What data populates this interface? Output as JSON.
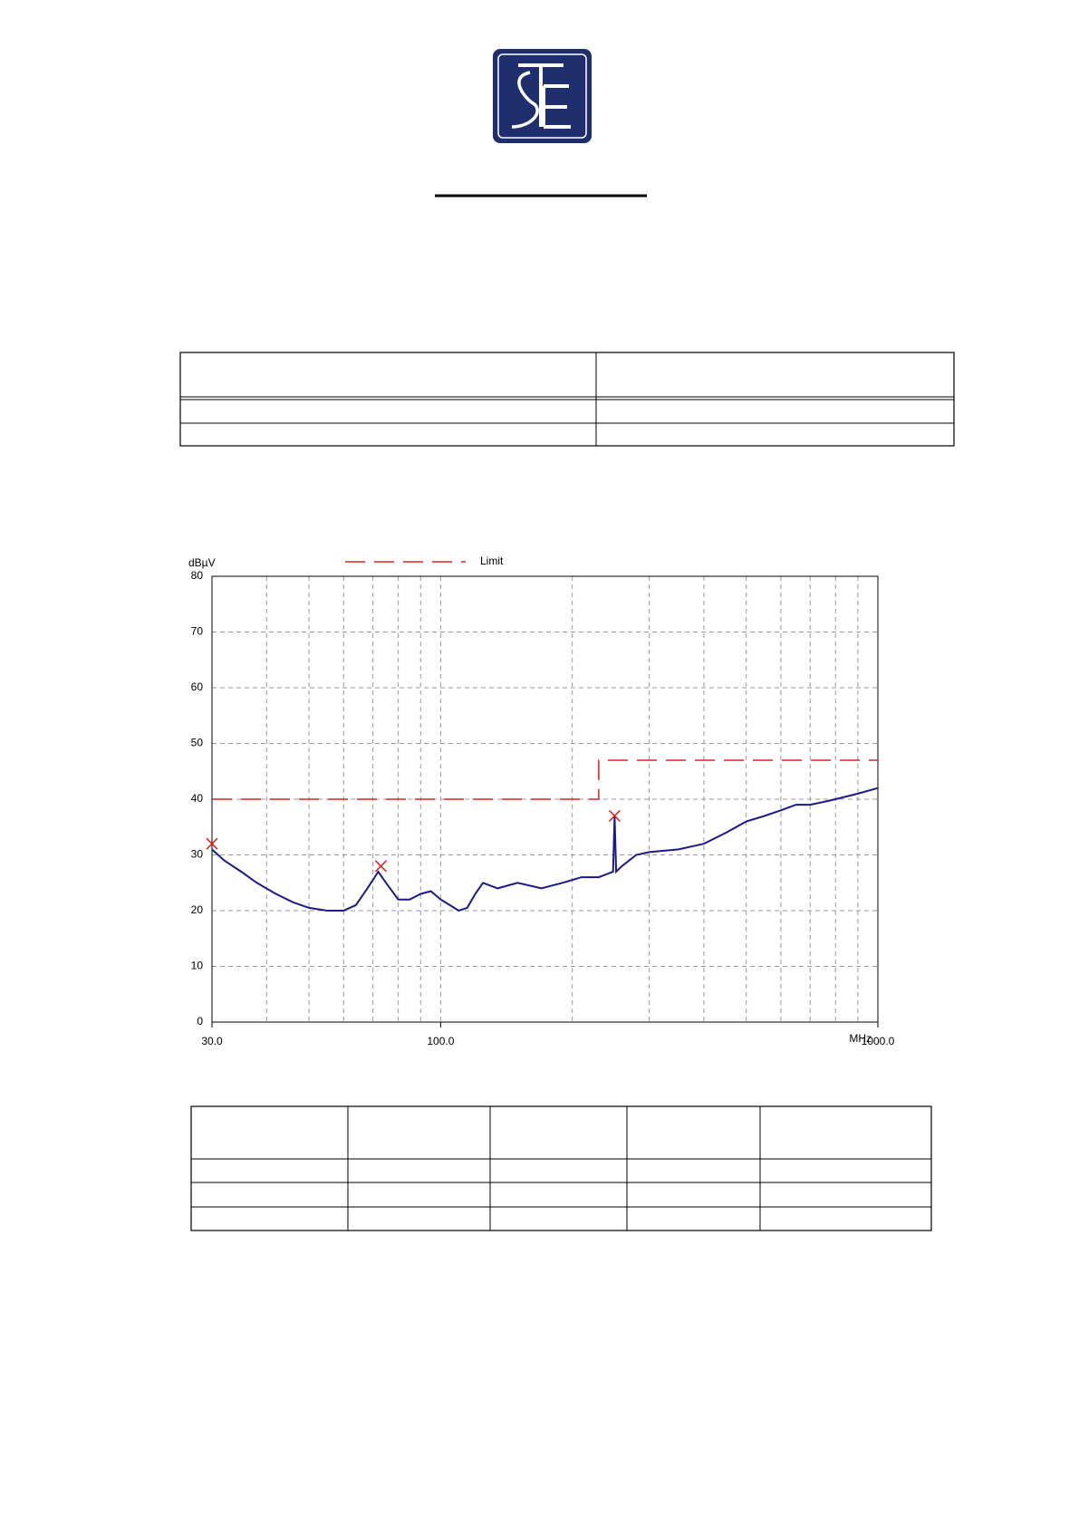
{
  "chart_data": {
    "type": "line",
    "y_label": "dBµV",
    "x_label": "MHz",
    "x_scale": "log",
    "xlim": [
      30,
      1000
    ],
    "ylim": [
      0,
      80
    ],
    "xticks": [
      {
        "value": 30,
        "label": "30.0"
      },
      {
        "value": 100,
        "label": "100.0"
      },
      {
        "value": 1000,
        "label": "1000.0"
      }
    ],
    "x_minor_grid": [
      40,
      50,
      60,
      70,
      80,
      90,
      200,
      300,
      400,
      500,
      600,
      700,
      800,
      900
    ],
    "yticks": [
      0,
      10,
      20,
      30,
      40,
      50,
      60,
      70,
      80
    ],
    "grid": true,
    "series": [
      {
        "color": "#1a1a8c",
        "x": [
          30,
          32,
          35,
          38,
          42,
          46,
          50,
          55,
          60,
          64,
          68,
          72,
          75,
          80,
          85,
          90,
          95,
          100,
          105,
          110,
          115,
          120,
          125,
          135,
          150,
          170,
          190,
          210,
          230,
          248,
          250,
          252,
          260,
          280,
          300,
          350,
          400,
          450,
          500,
          550,
          600,
          650,
          700,
          750,
          800,
          900,
          1000
        ],
        "values": [
          31,
          29,
          27,
          25,
          23,
          21.5,
          20.5,
          20,
          20,
          21,
          24,
          27,
          25,
          22,
          22,
          23,
          23.5,
          22,
          21,
          20,
          20.5,
          23,
          25,
          24,
          25,
          24,
          25,
          26,
          26,
          27,
          37,
          27,
          28,
          30,
          30.5,
          31,
          32,
          34,
          36,
          37,
          38,
          39,
          39,
          39.5,
          40,
          41,
          42
        ]
      },
      {
        "name": "Limit",
        "color": "#e02020",
        "dashed": true,
        "x": [
          30,
          230,
          230,
          1000
        ],
        "values": [
          40,
          40,
          47,
          47
        ]
      },
      {
        "type": "scatter",
        "marker": "x",
        "color": "#e02020",
        "x": [
          30,
          73,
          250
        ],
        "values": [
          32,
          28,
          37
        ]
      }
    ]
  }
}
